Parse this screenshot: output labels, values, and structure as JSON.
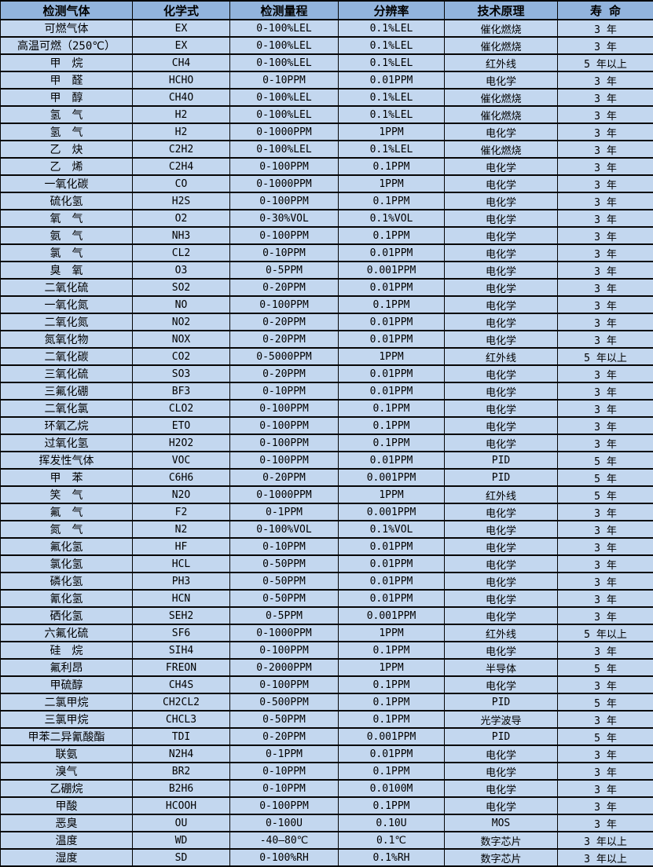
{
  "colors": {
    "header_bg": "#92b4dd",
    "row_bg": "#c3d7ef",
    "border": "#060606",
    "text": "#000000"
  },
  "table": {
    "columns": [
      "检测气体",
      "化学式",
      "检测量程",
      "分辨率",
      "技术原理",
      "寿 命"
    ],
    "rows": [
      {
        "gas": "可燃气体",
        "formula": "EX",
        "range": "0-100%LEL",
        "resolution": "0.1%LEL",
        "principle": "催化燃烧",
        "lifespan": "3 年"
      },
      {
        "gas": "高温可燃（250℃）",
        "formula": "EX",
        "range": "0-100%LEL",
        "resolution": "0.1%LEL",
        "principle": "催化燃烧",
        "lifespan": "3 年"
      },
      {
        "gas": "甲　烷",
        "formula": "CH4",
        "range": "0-100%LEL",
        "resolution": "0.1%LEL",
        "principle": "红外线",
        "lifespan": "5 年以上"
      },
      {
        "gas": "甲　醛",
        "formula": "HCHO",
        "range": "0-10PPM",
        "resolution": "0.01PPM",
        "principle": "电化学",
        "lifespan": "3 年"
      },
      {
        "gas": "甲　醇",
        "formula": "CH4O",
        "range": "0-100%LEL",
        "resolution": "0.1%LEL",
        "principle": "催化燃烧",
        "lifespan": "3 年"
      },
      {
        "gas": "氢　气",
        "formula": "H2",
        "range": "0-100%LEL",
        "resolution": "0.1%LEL",
        "principle": "催化燃烧",
        "lifespan": "3 年"
      },
      {
        "gas": "氢　气",
        "formula": "H2",
        "range": "0-1000PPM",
        "resolution": "1PPM",
        "principle": "电化学",
        "lifespan": "3 年"
      },
      {
        "gas": "乙　炔",
        "formula": "C2H2",
        "range": "0-100%LEL",
        "resolution": "0.1%LEL",
        "principle": "催化燃烧",
        "lifespan": "3 年"
      },
      {
        "gas": "乙　烯",
        "formula": "C2H4",
        "range": "0-100PPM",
        "resolution": "0.1PPM",
        "principle": "电化学",
        "lifespan": "3 年"
      },
      {
        "gas": "一氧化碳",
        "formula": "CO",
        "range": "0-1000PPM",
        "resolution": "1PPM",
        "principle": "电化学",
        "lifespan": "3 年"
      },
      {
        "gas": "硫化氢",
        "formula": "H2S",
        "range": "0-100PPM",
        "resolution": "0.1PPM",
        "principle": "电化学",
        "lifespan": "3 年"
      },
      {
        "gas": "氧　气",
        "formula": "O2",
        "range": "0-30%VOL",
        "resolution": "0.1%VOL",
        "principle": "电化学",
        "lifespan": "3 年"
      },
      {
        "gas": "氨　气",
        "formula": "NH3",
        "range": "0-100PPM",
        "resolution": "0.1PPM",
        "principle": "电化学",
        "lifespan": "3 年"
      },
      {
        "gas": "氯　气",
        "formula": "CL2",
        "range": "0-10PPM",
        "resolution": "0.01PPM",
        "principle": "电化学",
        "lifespan": "3 年"
      },
      {
        "gas": "臭　氧",
        "formula": "O3",
        "range": "0-5PPM",
        "resolution": "0.001PPM",
        "principle": "电化学",
        "lifespan": "3 年"
      },
      {
        "gas": "二氧化硫",
        "formula": "SO2",
        "range": "0-20PPM",
        "resolution": "0.01PPM",
        "principle": "电化学",
        "lifespan": "3 年"
      },
      {
        "gas": "一氧化氮",
        "formula": "NO",
        "range": "0-100PPM",
        "resolution": "0.1PPM",
        "principle": "电化学",
        "lifespan": "3 年"
      },
      {
        "gas": "二氧化氮",
        "formula": "NO2",
        "range": "0-20PPM",
        "resolution": "0.01PPM",
        "principle": "电化学",
        "lifespan": "3 年"
      },
      {
        "gas": "氮氧化物",
        "formula": "NOX",
        "range": "0-20PPM",
        "resolution": "0.01PPM",
        "principle": "电化学",
        "lifespan": "3 年"
      },
      {
        "gas": "二氧化碳",
        "formula": "CO2",
        "range": "0-5000PPM",
        "resolution": "1PPM",
        "principle": "红外线",
        "lifespan": "5 年以上"
      },
      {
        "gas": "三氧化硫",
        "formula": "SO3",
        "range": "0-20PPM",
        "resolution": "0.01PPM",
        "principle": "电化学",
        "lifespan": "3 年"
      },
      {
        "gas": "三氟化硼",
        "formula": "BF3",
        "range": "0-10PPM",
        "resolution": "0.01PPM",
        "principle": "电化学",
        "lifespan": "3 年"
      },
      {
        "gas": "二氧化氯",
        "formula": "CLO2",
        "range": "0-100PPM",
        "resolution": "0.1PPM",
        "principle": "电化学",
        "lifespan": "3 年"
      },
      {
        "gas": "环氧乙烷",
        "formula": "ETO",
        "range": "0-100PPM",
        "resolution": "0.1PPM",
        "principle": "电化学",
        "lifespan": "3 年"
      },
      {
        "gas": "过氧化氢",
        "formula": "H2O2",
        "range": "0-100PPM",
        "resolution": "0.1PPM",
        "principle": "电化学",
        "lifespan": "3 年"
      },
      {
        "gas": "挥发性气体",
        "formula": "VOC",
        "range": "0-100PPM",
        "resolution": "0.01PPM",
        "principle": "PID",
        "lifespan": "5 年"
      },
      {
        "gas": "甲　苯",
        "formula": "C6H6",
        "range": "0-20PPM",
        "resolution": "0.001PPM",
        "principle": "PID",
        "lifespan": "5 年"
      },
      {
        "gas": "笑　气",
        "formula": "N2O",
        "range": "0-1000PPM",
        "resolution": "1PPM",
        "principle": "红外线",
        "lifespan": "5 年"
      },
      {
        "gas": "氟　气",
        "formula": "F2",
        "range": "0-1PPM",
        "resolution": "0.001PPM",
        "principle": "电化学",
        "lifespan": "3 年"
      },
      {
        "gas": "氮　气",
        "formula": "N2",
        "range": "0-100%VOL",
        "resolution": "0.1%VOL",
        "principle": "电化学",
        "lifespan": "3 年"
      },
      {
        "gas": "氟化氢",
        "formula": "HF",
        "range": "0-10PPM",
        "resolution": "0.01PPM",
        "principle": "电化学",
        "lifespan": "3 年"
      },
      {
        "gas": "氯化氢",
        "formula": "HCL",
        "range": "0-50PPM",
        "resolution": "0.01PPM",
        "principle": "电化学",
        "lifespan": "3 年"
      },
      {
        "gas": "磷化氢",
        "formula": "PH3",
        "range": "0-50PPM",
        "resolution": "0.01PPM",
        "principle": "电化学",
        "lifespan": "3 年"
      },
      {
        "gas": "氰化氢",
        "formula": "HCN",
        "range": "0-50PPM",
        "resolution": "0.01PPM",
        "principle": "电化学",
        "lifespan": "3 年"
      },
      {
        "gas": "硒化氢",
        "formula": "SEH2",
        "range": "0-5PPM",
        "resolution": "0.001PPM",
        "principle": "电化学",
        "lifespan": "3 年"
      },
      {
        "gas": "六氟化硫",
        "formula": "SF6",
        "range": "0-1000PPM",
        "resolution": "1PPM",
        "principle": "红外线",
        "lifespan": "5 年以上"
      },
      {
        "gas": "硅　烷",
        "formula": "SIH4",
        "range": "0-100PPM",
        "resolution": "0.1PPM",
        "principle": "电化学",
        "lifespan": "3 年"
      },
      {
        "gas": "氟利昂",
        "formula": "FREON",
        "range": "0-2000PPM",
        "resolution": "1PPM",
        "principle": "半导体",
        "lifespan": "5 年"
      },
      {
        "gas": "甲硫醇",
        "formula": "CH4S",
        "range": "0-100PPM",
        "resolution": "0.1PPM",
        "principle": "电化学",
        "lifespan": "3 年"
      },
      {
        "gas": "二氯甲烷",
        "formula": "CH2CL2",
        "range": "0-500PPM",
        "resolution": "0.1PPM",
        "principle": "PID",
        "lifespan": "5 年"
      },
      {
        "gas": "三氯甲烷",
        "formula": "CHCL3",
        "range": "0-50PPM",
        "resolution": "0.1PPM",
        "principle": "光学波导",
        "lifespan": "3 年"
      },
      {
        "gas": "甲苯二异氰酸酯",
        "formula": "TDI",
        "range": "0-20PPM",
        "resolution": "0.001PPM",
        "principle": "PID",
        "lifespan": "5 年"
      },
      {
        "gas": "联氨",
        "formula": "N2H4",
        "range": "0-1PPM",
        "resolution": "0.01PPM",
        "principle": "电化学",
        "lifespan": "3 年"
      },
      {
        "gas": "溴气",
        "formula": "BR2",
        "range": "0-10PPM",
        "resolution": "0.1PPM",
        "principle": "电化学",
        "lifespan": "3 年"
      },
      {
        "gas": "乙硼烷",
        "formula": "B2H6",
        "range": "0-10PPM",
        "resolution": "0.0100M",
        "principle": "电化学",
        "lifespan": "3 年"
      },
      {
        "gas": "甲酸",
        "formula": "HCOOH",
        "range": "0-100PPM",
        "resolution": "0.1PPM",
        "principle": "电化学",
        "lifespan": "3 年"
      },
      {
        "gas": "恶臭",
        "formula": "OU",
        "range": "0-100U",
        "resolution": "0.10U",
        "principle": "MOS",
        "lifespan": "3 年"
      },
      {
        "gas": "温度",
        "formula": "WD",
        "range": "-40—80℃",
        "resolution": "0.1℃",
        "principle": "数字芯片",
        "lifespan": "3 年以上"
      },
      {
        "gas": "湿度",
        "formula": "SD",
        "range": "0-100%RH",
        "resolution": "0.1%RH",
        "principle": "数字芯片",
        "lifespan": "3 年以上"
      }
    ]
  }
}
